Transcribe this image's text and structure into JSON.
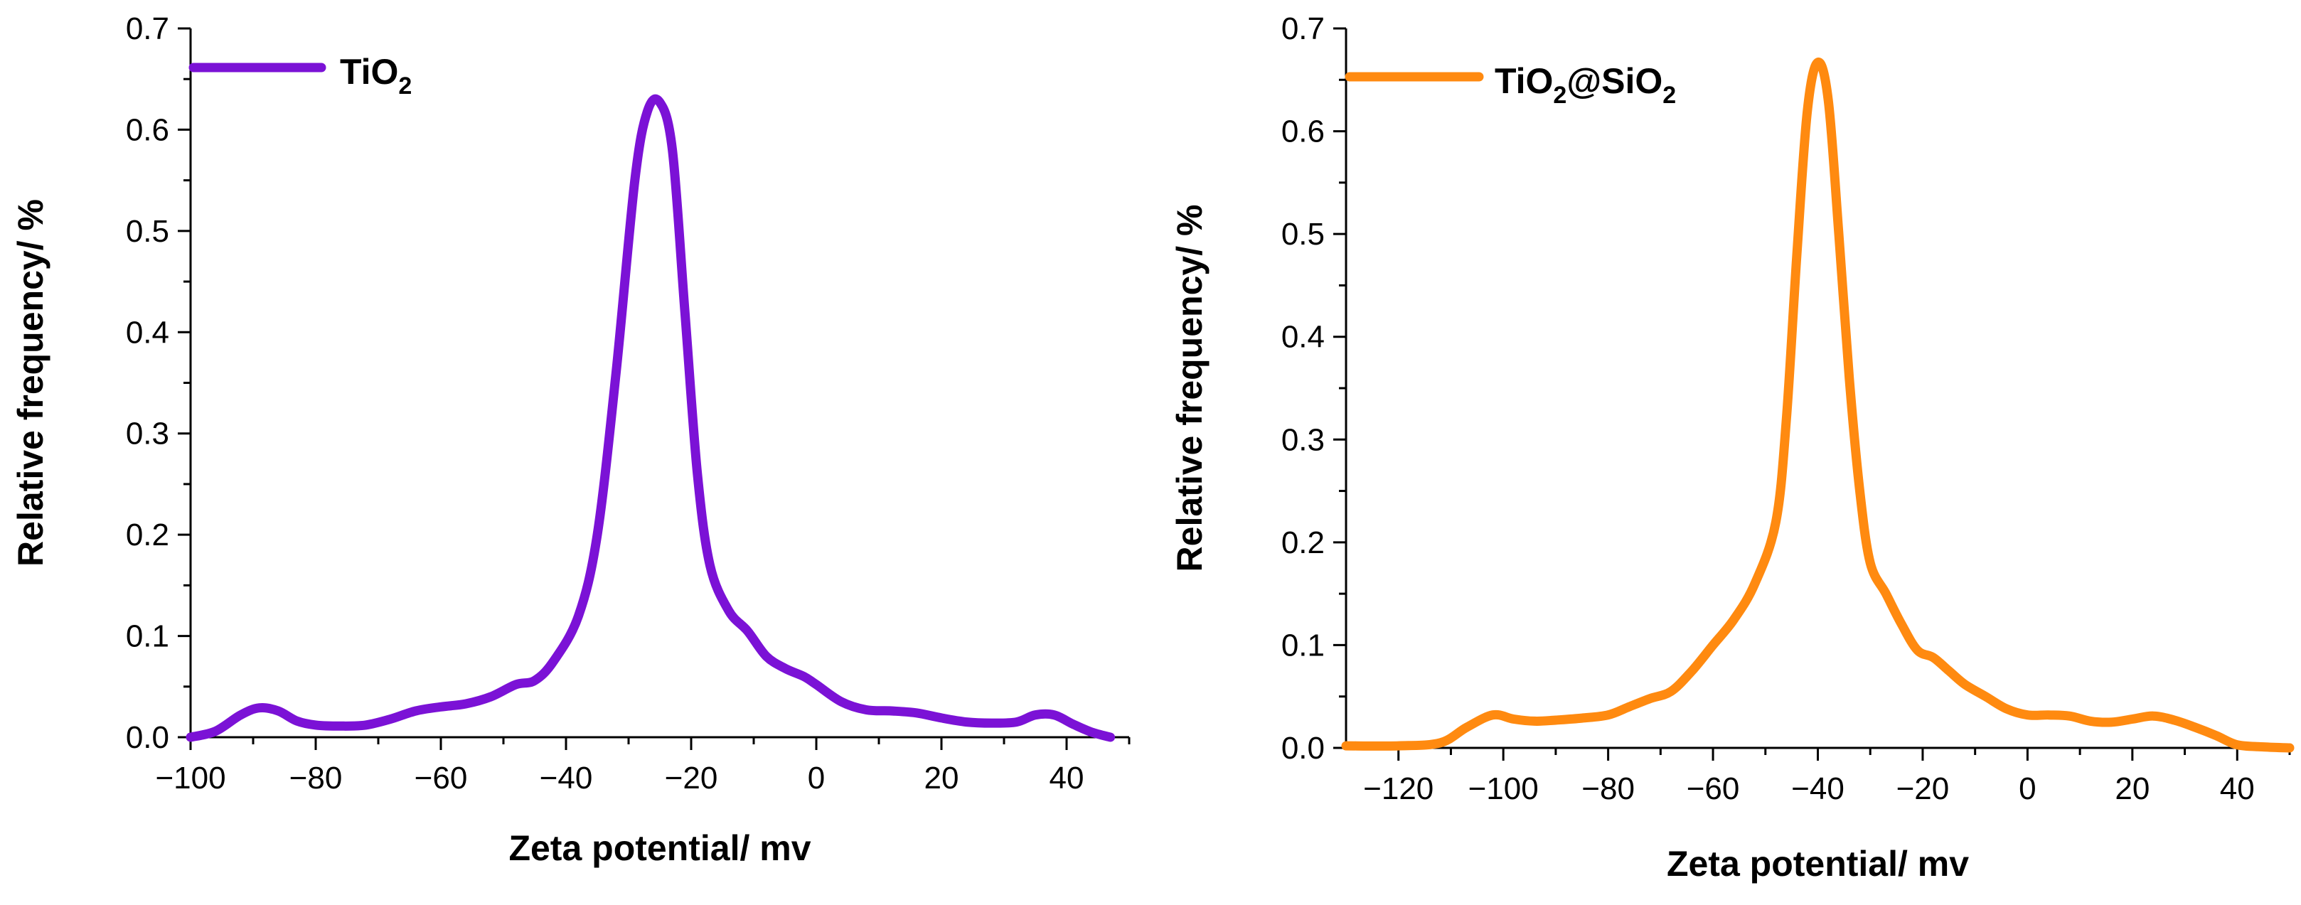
{
  "chart_data": [
    {
      "type": "line",
      "xlabel": "Zeta potential/ mv",
      "ylabel": "Relative frequency/ %",
      "xlim": [
        -100,
        50
      ],
      "ylim": [
        0,
        0.7
      ],
      "xticks": [
        -100,
        -80,
        -60,
        -40,
        -20,
        0,
        20,
        40
      ],
      "xtick_labels": [
        "−100",
        "−80",
        "−60",
        "−40",
        "−20",
        "0",
        "20",
        "40"
      ],
      "yticks": [
        0,
        0.1,
        0.2,
        0.3,
        0.4,
        0.5,
        0.6,
        0.7
      ],
      "ytick_labels": [
        "0.0",
        "0.1",
        "0.2",
        "0.3",
        "0.4",
        "0.5",
        "0.6",
        "0.7"
      ],
      "grid": false,
      "legend_position": "top-left",
      "series": [
        {
          "name": "TiO2",
          "legend_main": "TiO",
          "legend_sub": "2",
          "color": "#7B12D6",
          "x": [
            -100,
            -96,
            -92,
            -89,
            -86,
            -83,
            -80,
            -76,
            -72,
            -68,
            -64,
            -60,
            -56,
            -52,
            -48,
            -45,
            -42,
            -38,
            -35,
            -32,
            -29,
            -27,
            -25,
            -23,
            -21,
            -19,
            -17,
            -14,
            -11,
            -8,
            -5,
            -2,
            0,
            4,
            8,
            12,
            16,
            20,
            24,
            28,
            32,
            35,
            38,
            41,
            44,
            47
          ],
          "y": [
            0.0,
            0.006,
            0.022,
            0.029,
            0.026,
            0.016,
            0.012,
            0.011,
            0.012,
            0.018,
            0.026,
            0.03,
            0.033,
            0.04,
            0.052,
            0.056,
            0.075,
            0.12,
            0.2,
            0.36,
            0.55,
            0.618,
            0.627,
            0.58,
            0.42,
            0.26,
            0.17,
            0.125,
            0.105,
            0.08,
            0.068,
            0.06,
            0.052,
            0.035,
            0.027,
            0.026,
            0.024,
            0.019,
            0.015,
            0.014,
            0.015,
            0.022,
            0.022,
            0.013,
            0.005,
            0.0
          ]
        }
      ]
    },
    {
      "type": "line",
      "xlabel": "Zeta potential/ mv",
      "ylabel": "Relative frequency/ %",
      "xlim": [
        -130,
        50
      ],
      "ylim": [
        0,
        0.7
      ],
      "xticks": [
        -120,
        -100,
        -80,
        -60,
        -40,
        -20,
        0,
        20,
        40
      ],
      "xtick_labels": [
        "−120",
        "−100",
        "−80",
        "−60",
        "−40",
        "−20",
        "0",
        "20",
        "40"
      ],
      "yticks": [
        0,
        0.1,
        0.2,
        0.3,
        0.4,
        0.5,
        0.6,
        0.7
      ],
      "ytick_labels": [
        "0.0",
        "0.1",
        "0.2",
        "0.3",
        "0.4",
        "0.5",
        "0.6",
        "0.7"
      ],
      "grid": false,
      "legend_position": "top-left",
      "series": [
        {
          "name": "TiO2@SiO2",
          "legend_main": "TiO",
          "legend_sub": "2",
          "legend_main2": "@SiO",
          "legend_sub2": "2",
          "color": "#FF8A10",
          "x": [
            -130,
            -120,
            -112,
            -107,
            -102,
            -98,
            -94,
            -90,
            -85,
            -80,
            -76,
            -72,
            -68,
            -64,
            -60,
            -56,
            -52,
            -48,
            -46,
            -44,
            -42,
            -40,
            -38,
            -36,
            -34,
            -32,
            -30,
            -27,
            -24,
            -21,
            -18,
            -15,
            -12,
            -8,
            -4,
            0,
            4,
            8,
            12,
            16,
            20,
            24,
            28,
            32,
            36,
            40,
            45,
            50
          ],
          "y": [
            0.002,
            0.002,
            0.005,
            0.02,
            0.032,
            0.028,
            0.026,
            0.027,
            0.029,
            0.032,
            0.04,
            0.048,
            0.055,
            0.075,
            0.1,
            0.125,
            0.16,
            0.22,
            0.32,
            0.48,
            0.62,
            0.667,
            0.63,
            0.5,
            0.36,
            0.25,
            0.18,
            0.15,
            0.12,
            0.095,
            0.088,
            0.075,
            0.062,
            0.05,
            0.038,
            0.032,
            0.032,
            0.031,
            0.026,
            0.025,
            0.028,
            0.031,
            0.027,
            0.02,
            0.012,
            0.003,
            0.001,
            0.0
          ]
        }
      ]
    }
  ]
}
